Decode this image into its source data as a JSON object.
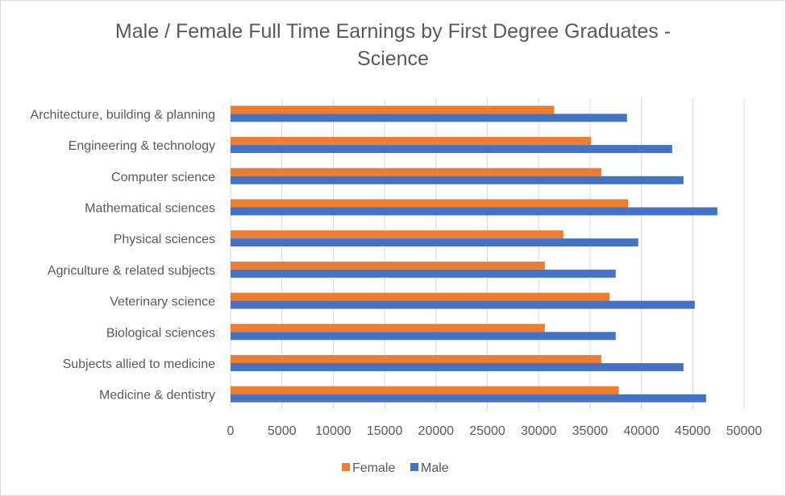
{
  "chart_data": {
    "type": "bar",
    "orientation": "horizontal",
    "title_line1": "Male / Female Full Time Earnings by First Degree Graduates -",
    "title_line2": "Science",
    "categories": [
      "Architecture, building & planning",
      "Engineering & technology",
      "Computer science",
      "Mathematical sciences",
      "Physical sciences",
      "Agriculture & related subjects",
      "Veterinary science",
      "Biological sciences",
      "Subjects allied to medicine",
      "Medicine & dentistry"
    ],
    "series": [
      {
        "name": "Female",
        "color": "#ED7D31",
        "values": [
          31500,
          35100,
          36100,
          38700,
          32400,
          30600,
          36900,
          30600,
          36100,
          37800
        ]
      },
      {
        "name": "Male",
        "color": "#4472C4",
        "values": [
          38600,
          43000,
          44100,
          47400,
          39700,
          37500,
          45200,
          37500,
          44100,
          46300
        ]
      }
    ],
    "xlim": [
      0,
      50000
    ],
    "xticks": [
      "0",
      "5000",
      "10000",
      "15000",
      "20000",
      "25000",
      "30000",
      "35000",
      "40000",
      "45000",
      "50000"
    ],
    "grid": true,
    "legend_position": "bottom"
  }
}
